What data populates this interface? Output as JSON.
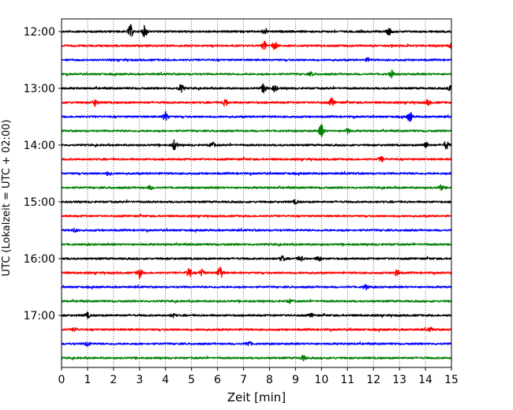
{
  "chart_data": {
    "type": "line",
    "subtype": "helicorder",
    "xlabel": "Zeit  [min]",
    "ylabel": "UTC (Lokalzeit = UTC + 02:00)",
    "xlim": [
      0,
      15
    ],
    "x_ticks": [
      "0",
      "1",
      "2",
      "3",
      "4",
      "5",
      "6",
      "7",
      "8",
      "9",
      "10",
      "11",
      "12",
      "13",
      "14",
      "15"
    ],
    "vertical_grid": "dotted",
    "trace_interval_min": 15,
    "hour_labels": [
      "12:00",
      "13:00",
      "14:00",
      "15:00",
      "16:00",
      "17:00"
    ],
    "colors": [
      "#000000",
      "#ff0000",
      "#0000ff",
      "#008000"
    ],
    "traces": [
      {
        "start": "12:00",
        "color": "#000000",
        "events": [
          [
            2.65,
            8
          ],
          [
            3.2,
            7
          ],
          [
            7.8,
            3
          ],
          [
            12.6,
            4
          ]
        ]
      },
      {
        "start": "12:15",
        "color": "#ff0000",
        "events": [
          [
            7.8,
            5
          ],
          [
            8.2,
            5
          ],
          [
            15,
            3
          ]
        ]
      },
      {
        "start": "12:30",
        "color": "#0000ff",
        "events": [
          [
            11.8,
            2
          ]
        ]
      },
      {
        "start": "12:45",
        "color": "#008000",
        "events": [
          [
            12.7,
            4
          ],
          [
            9.6,
            2
          ]
        ]
      },
      {
        "start": "13:00",
        "color": "#000000",
        "events": [
          [
            4.6,
            5
          ],
          [
            7.8,
            6
          ],
          [
            8.2,
            4
          ],
          [
            15,
            6
          ]
        ]
      },
      {
        "start": "13:15",
        "color": "#ff0000",
        "events": [
          [
            1.3,
            4
          ],
          [
            6.3,
            4
          ],
          [
            10.4,
            5
          ],
          [
            14.1,
            3
          ]
        ]
      },
      {
        "start": "13:30",
        "color": "#0000ff",
        "events": [
          [
            4.0,
            6
          ],
          [
            13.4,
            6
          ]
        ]
      },
      {
        "start": "13:45",
        "color": "#008000",
        "events": [
          [
            10.0,
            8
          ],
          [
            11.0,
            3
          ]
        ]
      },
      {
        "start": "14:00",
        "color": "#000000",
        "events": [
          [
            4.35,
            6
          ],
          [
            5.8,
            3
          ],
          [
            14.0,
            4
          ],
          [
            14.8,
            5
          ]
        ]
      },
      {
        "start": "14:15",
        "color": "#ff0000",
        "events": [
          [
            12.3,
            3
          ]
        ]
      },
      {
        "start": "14:30",
        "color": "#0000ff",
        "events": [
          [
            1.8,
            2
          ]
        ]
      },
      {
        "start": "14:45",
        "color": "#008000",
        "events": [
          [
            14.6,
            3
          ],
          [
            3.4,
            2
          ]
        ]
      },
      {
        "start": "15:00",
        "color": "#000000",
        "events": [
          [
            9.0,
            2
          ]
        ]
      },
      {
        "start": "15:15",
        "color": "#ff0000",
        "events": []
      },
      {
        "start": "15:30",
        "color": "#0000ff",
        "events": [
          [
            0.5,
            2
          ]
        ]
      },
      {
        "start": "15:45",
        "color": "#008000",
        "events": []
      },
      {
        "start": "16:00",
        "color": "#000000",
        "events": [
          [
            8.5,
            3
          ],
          [
            9.2,
            3
          ],
          [
            9.9,
            3
          ]
        ]
      },
      {
        "start": "16:15",
        "color": "#ff0000",
        "events": [
          [
            3.0,
            6
          ],
          [
            4.9,
            6
          ],
          [
            5.4,
            4
          ],
          [
            6.1,
            8
          ],
          [
            12.9,
            4
          ]
        ]
      },
      {
        "start": "16:30",
        "color": "#0000ff",
        "events": [
          [
            11.7,
            3
          ]
        ]
      },
      {
        "start": "16:45",
        "color": "#008000",
        "events": [
          [
            8.8,
            2
          ]
        ]
      },
      {
        "start": "17:00",
        "color": "#000000",
        "events": [
          [
            1.0,
            3
          ],
          [
            4.3,
            2
          ],
          [
            9.6,
            2
          ]
        ]
      },
      {
        "start": "17:15",
        "color": "#ff0000",
        "events": [
          [
            0.5,
            2
          ],
          [
            14.2,
            2
          ]
        ]
      },
      {
        "start": "17:30",
        "color": "#0000ff",
        "events": [
          [
            1.0,
            3
          ],
          [
            7.2,
            3
          ]
        ]
      },
      {
        "start": "17:45",
        "color": "#008000",
        "events": [
          [
            9.3,
            3
          ]
        ]
      }
    ]
  }
}
